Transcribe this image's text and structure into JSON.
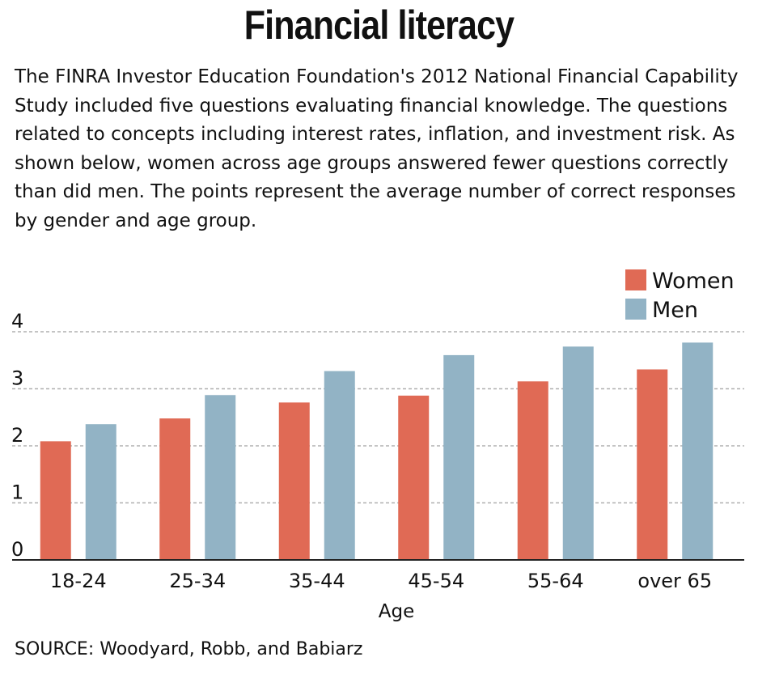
{
  "header": {
    "title": "Financial literacy",
    "description": "The FINRA Investor Education Foundation's 2012 National Financial Capability Study included five questions evaluating financial knowledge. The questions related to concepts including interest rates, inflation, and investment risk. As shown below, women across age groups answered fewer questions correctly than did men. The points represent the average number of correct responses by gender and age group."
  },
  "footer": {
    "source": "SOURCE: Woodyard, Robb, and Babiarz"
  },
  "colors": {
    "women": "#e06a55",
    "men": "#92b3c5",
    "grid": "#b0b0b0",
    "axis": "#222222"
  },
  "chart_data": {
    "type": "bar",
    "title": "",
    "xlabel": "Age",
    "ylabel": "",
    "ylim": [
      0,
      4
    ],
    "yticks": [
      "0",
      "1",
      "2",
      "3",
      "4"
    ],
    "grid": true,
    "legend": "top-right",
    "categories": [
      "18-24",
      "25-34",
      "35-44",
      "45-54",
      "55-64",
      "over 65"
    ],
    "series": [
      {
        "name": "Women",
        "values": [
          2.08,
          2.48,
          2.76,
          2.88,
          3.13,
          3.34
        ]
      },
      {
        "name": "Men",
        "values": [
          2.38,
          2.89,
          3.31,
          3.59,
          3.74,
          3.81
        ]
      }
    ]
  }
}
